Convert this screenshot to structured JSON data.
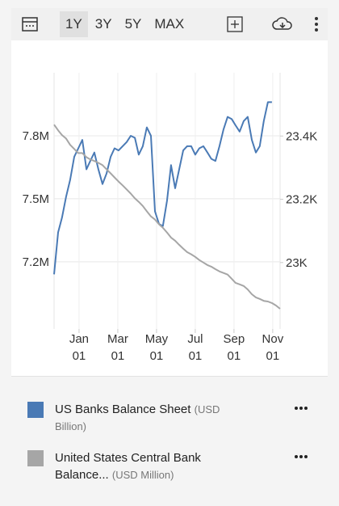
{
  "toolbar": {
    "ranges": [
      "1Y",
      "3Y",
      "5Y",
      "MAX"
    ],
    "selected": "1Y"
  },
  "chart_data": {
    "type": "line",
    "x": [
      -1.29,
      -1.08,
      -0.88,
      -0.67,
      -0.46,
      -0.25,
      -0.04,
      0.17,
      0.38,
      0.58,
      0.79,
      1.0,
      1.21,
      1.42,
      1.63,
      1.83,
      2.04,
      2.25,
      2.46,
      2.67,
      2.88,
      3.08,
      3.29,
      3.5,
      3.71,
      3.92,
      4.13,
      4.33,
      4.54,
      4.75,
      4.96,
      5.17,
      5.38,
      5.58,
      5.79,
      6.0,
      6.21,
      6.42,
      6.63,
      6.83,
      7.04,
      7.25,
      7.46,
      7.67,
      7.88,
      8.08,
      8.29,
      8.5,
      8.71,
      8.92,
      9.13,
      9.33,
      9.54,
      9.75,
      9.96,
      10.17,
      10.38
    ],
    "xlim": [
      -1.29,
      10.38
    ],
    "xticks": [
      {
        "value": 0,
        "label": "Jan 01"
      },
      {
        "value": 2,
        "label": "Mar 01"
      },
      {
        "value": 4,
        "label": "May 01"
      },
      {
        "value": 6,
        "label": "Jul 01"
      },
      {
        "value": 8,
        "label": "Sep 01"
      },
      {
        "value": 10,
        "label": "Nov 01"
      }
    ],
    "ylim": [
      6.88,
      8.1
    ],
    "yticks": [
      {
        "value": 7.2,
        "label": "7.2M"
      },
      {
        "value": 7.5,
        "label": "7.5M"
      },
      {
        "value": 7.8,
        "label": "7.8M"
      }
    ],
    "y2lim": [
      22.79,
      23.6
    ],
    "y2ticks": [
      {
        "value": 23,
        "label": "23K"
      },
      {
        "value": 23.2,
        "label": "23.2K"
      },
      {
        "value": 23.4,
        "label": "23.4K"
      }
    ],
    "grid": true,
    "series": [
      {
        "name": "US Banks Balance Sheet",
        "unit": "(USD Billion)",
        "color": "#4a7ab5",
        "values": [
          7.14,
          7.34,
          7.41,
          7.51,
          7.59,
          7.7,
          7.74,
          7.78,
          7.64,
          7.68,
          7.72,
          7.64,
          7.57,
          7.62,
          7.7,
          7.74,
          7.73,
          7.75,
          7.77,
          7.8,
          7.79,
          7.71,
          7.75,
          7.84,
          7.8,
          7.44,
          7.38,
          7.37,
          7.49,
          7.66,
          7.55,
          7.64,
          7.73,
          7.75,
          7.75,
          7.71,
          7.74,
          7.75,
          7.72,
          7.69,
          7.68,
          7.75,
          7.83,
          7.89,
          7.88,
          7.85,
          7.82,
          7.87,
          7.89,
          7.78,
          7.72,
          7.75,
          7.87,
          7.96,
          7.96,
          null,
          null
        ]
      },
      {
        "name": "United States Central Bank Balance...",
        "unit": "(USD Million)",
        "color": "#a6a6a6",
        "axis": "y2",
        "values": [
          23.436,
          23.418,
          23.403,
          23.392,
          23.372,
          23.359,
          23.346,
          23.346,
          23.333,
          23.326,
          23.321,
          23.315,
          23.308,
          23.295,
          23.282,
          23.269,
          23.256,
          23.244,
          23.231,
          23.218,
          23.203,
          23.192,
          23.179,
          23.162,
          23.146,
          23.136,
          23.121,
          23.11,
          23.095,
          23.079,
          23.069,
          23.056,
          23.044,
          23.033,
          23.026,
          23.018,
          23.008,
          23.0,
          22.992,
          22.987,
          22.979,
          22.972,
          22.967,
          22.962,
          22.949,
          22.936,
          22.931,
          22.926,
          22.915,
          22.9,
          22.89,
          22.885,
          22.879,
          22.877,
          22.872,
          22.864,
          22.854
        ]
      }
    ]
  }
}
